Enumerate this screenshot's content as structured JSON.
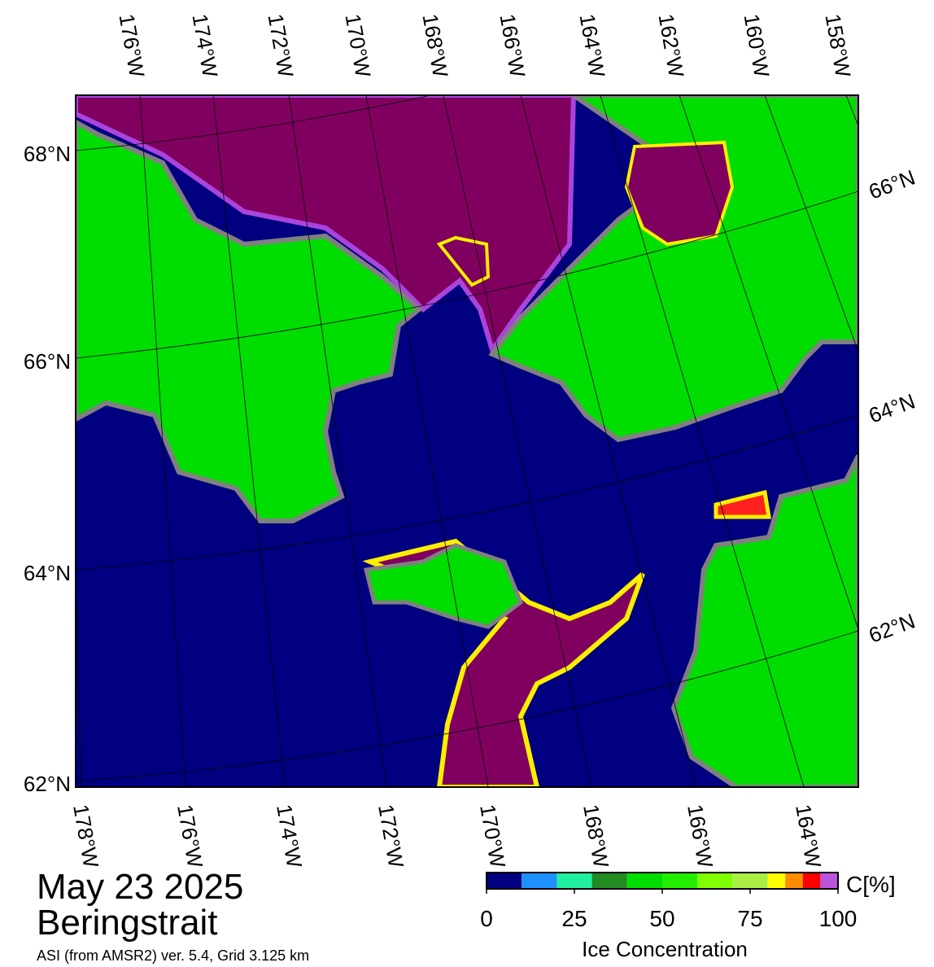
{
  "header": {
    "date": "May 23 2025",
    "region": "Beringstrait",
    "source": "ASI (from AMSR2) ver. 5.4,  Grid 3.125 km"
  },
  "map": {
    "top_labels": [
      "176°W",
      "174°W",
      "172°W",
      "170°W",
      "168°W",
      "166°W",
      "164°W",
      "162°W",
      "160°W",
      "158°W"
    ],
    "bottom_labels": [
      "178°W",
      "176°W",
      "174°W",
      "172°W",
      "170°W",
      "168°W",
      "166°W",
      "164°W"
    ],
    "left_labels": [
      "68°N",
      "66°N",
      "64°N",
      "62°N"
    ],
    "right_labels": [
      "66°N",
      "64°N",
      "62°N"
    ]
  },
  "colorbar": {
    "unit": "C[%]",
    "title": "Ice Concentration",
    "ticks": [
      0,
      25,
      50,
      75,
      100
    ],
    "bounds": [
      0,
      10,
      20,
      30,
      40,
      50,
      60,
      70,
      80,
      85,
      90,
      95,
      100
    ],
    "colors": [
      "#000080",
      "#1e90ff",
      "#20f0a0",
      "#228b22",
      "#00dd00",
      "#22ee00",
      "#7fff00",
      "#aaee44",
      "#ffff00",
      "#ff8c00",
      "#ff0000",
      "#bb55dd",
      "#8800cc"
    ]
  }
}
